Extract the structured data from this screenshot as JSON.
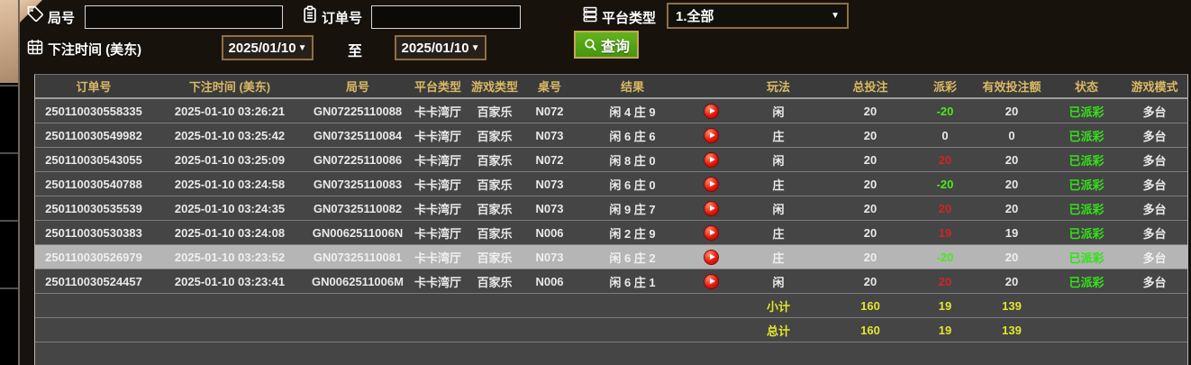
{
  "filters": {
    "game_no_label": "局号",
    "order_no_label": "订单号",
    "platform_type_label": "平台类型",
    "platform_type_value": "1.全部",
    "bet_time_label": "下注时间 (美东)",
    "date_from": "2025/01/10",
    "to_label": "至",
    "date_to": "2025/01/10",
    "query_button_label": "查询"
  },
  "table": {
    "headers": [
      {
        "key": "order_no",
        "label": "订单号"
      },
      {
        "key": "bet_time",
        "label": "下注时间 (美东)"
      },
      {
        "key": "game_no",
        "label": "局号"
      },
      {
        "key": "platform",
        "label": "平台类型"
      },
      {
        "key": "game_type",
        "label": "游戏类型"
      },
      {
        "key": "table_no",
        "label": "桌号"
      },
      {
        "key": "result",
        "label": "结果"
      },
      {
        "key": "video",
        "label": ""
      },
      {
        "key": "play",
        "label": "玩法"
      },
      {
        "key": "total_bet",
        "label": "总投注"
      },
      {
        "key": "payout",
        "label": "派彩"
      },
      {
        "key": "valid_bet",
        "label": "有效投注额"
      },
      {
        "key": "status",
        "label": "状态"
      },
      {
        "key": "mode",
        "label": "游戏模式"
      }
    ],
    "rows": [
      {
        "order_no": "250110030558335",
        "bet_time": "2025-01-10 03:26:21",
        "game_no": "GN07225110088",
        "platform": "卡卡湾厅",
        "game_type": "百家乐",
        "table_no": "N072",
        "result": "闲 4 庄 9",
        "play": "闲",
        "total_bet": "20",
        "payout": "-20",
        "payout_class": "neg",
        "valid_bet": "20",
        "status": "已派彩",
        "mode": "多台",
        "selected": false
      },
      {
        "order_no": "250110030549982",
        "bet_time": "2025-01-10 03:25:42",
        "game_no": "GN07325110084",
        "platform": "卡卡湾厅",
        "game_type": "百家乐",
        "table_no": "N073",
        "result": "闲 6 庄 6",
        "play": "庄",
        "total_bet": "20",
        "payout": "0",
        "payout_class": "zero",
        "valid_bet": "0",
        "status": "已派彩",
        "mode": "多台",
        "selected": false
      },
      {
        "order_no": "250110030543055",
        "bet_time": "2025-01-10 03:25:09",
        "game_no": "GN07225110086",
        "platform": "卡卡湾厅",
        "game_type": "百家乐",
        "table_no": "N072",
        "result": "闲 8 庄 0",
        "play": "闲",
        "total_bet": "20",
        "payout": "20",
        "payout_class": "pos",
        "valid_bet": "20",
        "status": "已派彩",
        "mode": "多台",
        "selected": false
      },
      {
        "order_no": "250110030540788",
        "bet_time": "2025-01-10 03:24:58",
        "game_no": "GN07325110083",
        "platform": "卡卡湾厅",
        "game_type": "百家乐",
        "table_no": "N073",
        "result": "闲 6 庄 0",
        "play": "庄",
        "total_bet": "20",
        "payout": "-20",
        "payout_class": "neg",
        "valid_bet": "20",
        "status": "已派彩",
        "mode": "多台",
        "selected": false
      },
      {
        "order_no": "250110030535539",
        "bet_time": "2025-01-10 03:24:35",
        "game_no": "GN07325110082",
        "platform": "卡卡湾厅",
        "game_type": "百家乐",
        "table_no": "N073",
        "result": "闲 9 庄 7",
        "play": "闲",
        "total_bet": "20",
        "payout": "20",
        "payout_class": "pos",
        "valid_bet": "20",
        "status": "已派彩",
        "mode": "多台",
        "selected": false
      },
      {
        "order_no": "250110030530383",
        "bet_time": "2025-01-10 03:24:08",
        "game_no": "GN0062511006N",
        "platform": "卡卡湾厅",
        "game_type": "百家乐",
        "table_no": "N006",
        "result": "闲 2 庄 9",
        "play": "庄",
        "total_bet": "20",
        "payout": "19",
        "payout_class": "pos",
        "valid_bet": "19",
        "status": "已派彩",
        "mode": "多台",
        "selected": false
      },
      {
        "order_no": "250110030526979",
        "bet_time": "2025-01-10 03:23:52",
        "game_no": "GN07325110081",
        "platform": "卡卡湾厅",
        "game_type": "百家乐",
        "table_no": "N073",
        "result": "闲 6 庄 2",
        "play": "庄",
        "total_bet": "20",
        "payout": "-20",
        "payout_class": "neg",
        "valid_bet": "20",
        "status": "已派彩",
        "mode": "多台",
        "selected": true
      },
      {
        "order_no": "250110030524457",
        "bet_time": "2025-01-10 03:23:41",
        "game_no": "GN0062511006M",
        "platform": "卡卡湾厅",
        "game_type": "百家乐",
        "table_no": "N006",
        "result": "闲 6 庄 1",
        "play": "闲",
        "total_bet": "20",
        "payout": "20",
        "payout_class": "pos",
        "valid_bet": "20",
        "status": "已派彩",
        "mode": "多台",
        "selected": false
      }
    ],
    "subtotal": {
      "label": "小计",
      "total_bet": "160",
      "payout": "19",
      "valid_bet": "139"
    },
    "total": {
      "label": "总计",
      "total_bet": "160",
      "payout": "19",
      "valid_bet": "139"
    }
  },
  "colors": {
    "header_gold": "#d9b964",
    "payout_positive_red": "#cf2428",
    "payout_negative_green": "#4ce71c",
    "status_green": "#35e11a",
    "summary_yellow": "#e3e62e",
    "query_button_green": "#54a416",
    "field_border_tan": "#8f6f45",
    "row_bg": "#454545",
    "selected_row_bg": "#b5b5b5",
    "play_icon_red": "#e61508"
  }
}
